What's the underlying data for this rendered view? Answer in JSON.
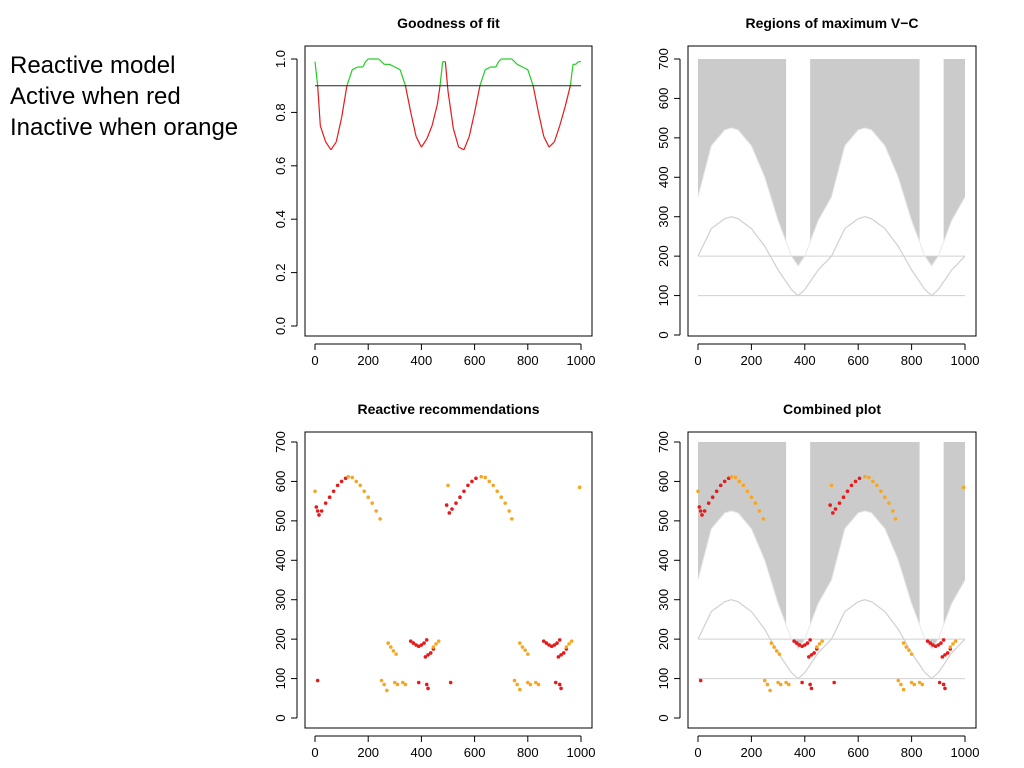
{
  "side_text": [
    "Reactive model",
    "Active when red",
    "Inactive when orange"
  ],
  "colors": {
    "good": "#22cc22",
    "bad": "#e41a1c",
    "threshold": "#222222",
    "region": "#cbcbcb",
    "curve": "#d0d0d0",
    "active": "#e41a1c",
    "inactive": "#f5a623"
  },
  "chart_data": [
    {
      "type": "line",
      "title": "Goodness of fit",
      "xlim": [
        0,
        1000
      ],
      "ylim": [
        0,
        1
      ],
      "x_ticks": [
        "0",
        "200",
        "400",
        "600",
        "800",
        "1000"
      ],
      "y_ticks": [
        "0.0",
        "0.2",
        "0.4",
        "0.6",
        "0.8",
        "1.0"
      ],
      "threshold": 0.9,
      "series": [
        {
          "x": [
            0,
            10,
            20,
            40,
            60,
            80,
            100,
            120,
            140,
            160,
            180,
            190,
            200,
            220,
            240,
            260,
            280,
            300,
            320,
            340,
            360,
            380,
            400,
            420,
            440,
            460,
            470,
            480,
            490,
            500,
            520,
            540,
            560,
            580,
            600,
            620,
            640,
            660,
            680,
            690,
            700,
            720,
            740,
            760,
            780,
            800,
            820,
            840,
            860,
            880,
            900,
            920,
            940,
            960,
            970,
            980,
            990,
            1000
          ],
          "y": [
            0.99,
            0.9,
            0.75,
            0.69,
            0.66,
            0.69,
            0.78,
            0.9,
            0.96,
            0.97,
            0.97,
            0.99,
            1.0,
            1.0,
            1.0,
            0.98,
            0.98,
            0.97,
            0.96,
            0.9,
            0.8,
            0.71,
            0.67,
            0.7,
            0.75,
            0.83,
            0.9,
            0.99,
            0.99,
            0.88,
            0.74,
            0.67,
            0.66,
            0.71,
            0.8,
            0.9,
            0.96,
            0.97,
            0.97,
            0.99,
            1.0,
            1.0,
            1.0,
            0.98,
            0.97,
            0.96,
            0.9,
            0.8,
            0.71,
            0.67,
            0.69,
            0.75,
            0.82,
            0.9,
            0.98,
            0.98,
            0.99,
            0.99
          ]
        }
      ]
    },
    {
      "type": "area",
      "title": "Regions of maximum V−C",
      "xlim": [
        0,
        1000
      ],
      "ylim": [
        0,
        700
      ],
      "x_ticks": [
        "0",
        "200",
        "400",
        "600",
        "800",
        "1000"
      ],
      "y_ticks": [
        "0",
        "100",
        "200",
        "300",
        "400",
        "500",
        "600",
        "700"
      ],
      "hlines": [
        100,
        200
      ],
      "gaps": [
        [
          330,
          420
        ],
        [
          830,
          920
        ]
      ],
      "upper_curve": {
        "x": [
          0,
          50,
          100,
          125,
          150,
          200,
          250,
          300,
          350,
          375,
          400,
          450,
          500,
          550,
          600,
          625,
          650,
          700,
          750,
          800,
          850,
          875,
          900,
          950,
          1000
        ],
        "y": [
          350,
          480,
          520,
          525,
          520,
          480,
          400,
          290,
          200,
          175,
          200,
          290,
          350,
          480,
          520,
          525,
          520,
          480,
          400,
          290,
          200,
          175,
          200,
          290,
          350
        ]
      },
      "lower_curve": {
        "x": [
          0,
          50,
          100,
          125,
          150,
          200,
          250,
          300,
          350,
          375,
          400,
          450,
          500,
          550,
          600,
          625,
          650,
          700,
          750,
          800,
          850,
          875,
          900,
          950,
          1000
        ],
        "y": [
          200,
          270,
          295,
          300,
          295,
          270,
          225,
          165,
          115,
          100,
          115,
          165,
          200,
          270,
          295,
          300,
          295,
          270,
          225,
          165,
          115,
          100,
          115,
          165,
          200
        ]
      }
    },
    {
      "type": "scatter",
      "title": "Reactive recommendations",
      "xlim": [
        0,
        1000
      ],
      "ylim": [
        0,
        700
      ],
      "x_ticks": [
        "0",
        "200",
        "400",
        "600",
        "800",
        "1000"
      ],
      "y_ticks": [
        "0",
        "100",
        "200",
        "300",
        "400",
        "500",
        "600",
        "700"
      ],
      "series": [
        {
          "name": "active",
          "points": [
            [
              5,
              535
            ],
            [
              10,
              525
            ],
            [
              15,
              515
            ],
            [
              25,
              525
            ],
            [
              40,
              545
            ],
            [
              55,
              560
            ],
            [
              70,
              575
            ],
            [
              85,
              590
            ],
            [
              100,
              600
            ],
            [
              115,
              608
            ],
            [
              10,
              95
            ],
            [
              360,
              195
            ],
            [
              370,
              190
            ],
            [
              380,
              185
            ],
            [
              390,
              182
            ],
            [
              400,
              185
            ],
            [
              410,
              190
            ],
            [
              420,
              198
            ],
            [
              415,
              155
            ],
            [
              425,
              160
            ],
            [
              435,
              165
            ],
            [
              445,
              175
            ],
            [
              390,
              90
            ],
            [
              420,
              85
            ],
            [
              425,
              75
            ],
            [
              495,
              540
            ],
            [
              505,
              520
            ],
            [
              515,
              530
            ],
            [
              530,
              545
            ],
            [
              545,
              560
            ],
            [
              560,
              575
            ],
            [
              575,
              590
            ],
            [
              590,
              600
            ],
            [
              605,
              608
            ],
            [
              510,
              90
            ],
            [
              860,
              195
            ],
            [
              870,
              190
            ],
            [
              880,
              185
            ],
            [
              890,
              182
            ],
            [
              900,
              185
            ],
            [
              910,
              190
            ],
            [
              920,
              198
            ],
            [
              915,
              155
            ],
            [
              925,
              160
            ],
            [
              935,
              165
            ],
            [
              945,
              175
            ],
            [
              905,
              90
            ],
            [
              920,
              85
            ],
            [
              925,
              75
            ]
          ]
        },
        {
          "name": "inactive",
          "points": [
            [
              0,
              575
            ],
            [
              125,
              612
            ],
            [
              140,
              610
            ],
            [
              155,
              600
            ],
            [
              170,
              590
            ],
            [
              185,
              575
            ],
            [
              200,
              560
            ],
            [
              215,
              545
            ],
            [
              230,
              525
            ],
            [
              245,
              505
            ],
            [
              275,
              190
            ],
            [
              285,
              180
            ],
            [
              295,
              170
            ],
            [
              305,
              162
            ],
            [
              250,
              95
            ],
            [
              260,
              85
            ],
            [
              270,
              70
            ],
            [
              300,
              90
            ],
            [
              310,
              85
            ],
            [
              330,
              90
            ],
            [
              340,
              85
            ],
            [
              445,
              180
            ],
            [
              455,
              188
            ],
            [
              465,
              195
            ],
            [
              500,
              590
            ],
            [
              625,
              612
            ],
            [
              640,
              610
            ],
            [
              655,
              600
            ],
            [
              670,
              590
            ],
            [
              685,
              575
            ],
            [
              700,
              560
            ],
            [
              715,
              545
            ],
            [
              730,
              525
            ],
            [
              740,
              505
            ],
            [
              770,
              190
            ],
            [
              780,
              180
            ],
            [
              790,
              172
            ],
            [
              800,
              162
            ],
            [
              750,
              95
            ],
            [
              760,
              85
            ],
            [
              770,
              72
            ],
            [
              800,
              90
            ],
            [
              810,
              85
            ],
            [
              830,
              90
            ],
            [
              840,
              85
            ],
            [
              945,
              180
            ],
            [
              955,
              188
            ],
            [
              965,
              195
            ],
            [
              995,
              585
            ]
          ]
        }
      ]
    },
    {
      "type": "area",
      "title": "Combined plot",
      "xlim": [
        0,
        1000
      ],
      "ylim": [
        0,
        700
      ],
      "x_ticks": [
        "0",
        "200",
        "400",
        "600",
        "800",
        "1000"
      ],
      "y_ticks": [
        "0",
        "100",
        "200",
        "300",
        "400",
        "500",
        "600",
        "700"
      ],
      "note": "overlay of regions and recommendations"
    }
  ]
}
